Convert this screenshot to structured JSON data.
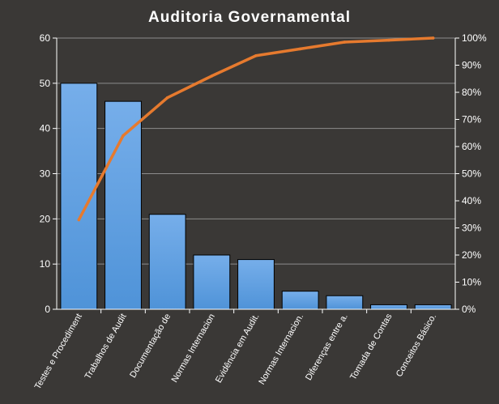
{
  "chart_data": {
    "type": "bar",
    "title": "Auditoria  Governamental",
    "categories": [
      "Testes e Procediment",
      "Trabalhos de Audit",
      "Documentação de",
      "Normas Internacion",
      "Evidência em Audit.",
      "Normas Internacion.",
      "Diferenças entre a.",
      "Tomada de Contas",
      "Conceitos Básico."
    ],
    "series": [
      {
        "type": "bar",
        "values": [
          50,
          46,
          21,
          12,
          11,
          4,
          3,
          1,
          1
        ]
      },
      {
        "type": "line",
        "axis": "right",
        "values": [
          33,
          64,
          78,
          86,
          93.5,
          96,
          98.5,
          99.2,
          100
        ]
      }
    ],
    "ylim": [
      0,
      60
    ],
    "y_ticks": [
      "0",
      "10",
      "20",
      "30",
      "40",
      "50",
      "60"
    ],
    "y2lim": [
      0,
      100
    ],
    "y2_ticks": [
      "0%",
      "10%",
      "20%",
      "30%",
      "40%",
      "50%",
      "60%",
      "70%",
      "80%",
      "90%",
      "100%"
    ],
    "grid": true,
    "legend": "none",
    "colors": {
      "background": "#3a3836",
      "bar": "#4f93d8",
      "bar_light": "#76aeea",
      "line": "#e67a2e",
      "text": "#ffffff",
      "grid": "#8c8c8c"
    }
  }
}
